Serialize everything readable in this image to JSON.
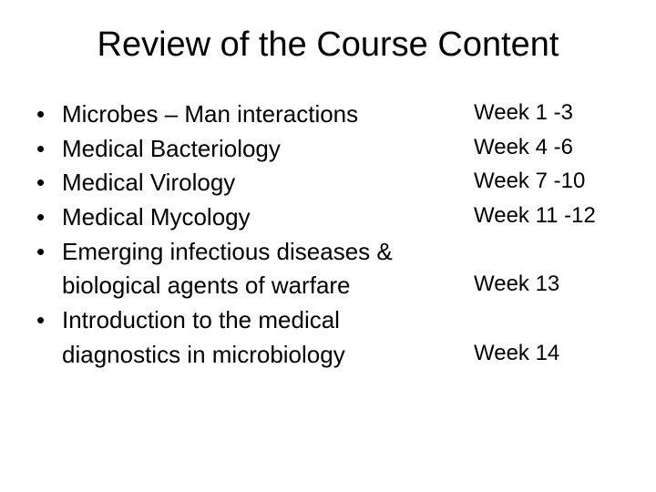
{
  "title": "Review of the Course Content",
  "rows": [
    {
      "bullet": "•",
      "topic": "Microbes – Man interactions",
      "week": "Week 1 -3"
    },
    {
      "bullet": "•",
      "topic": "Medical Bacteriology",
      "week": "Week 4 -6"
    },
    {
      "bullet": "•",
      "topic": "Medical Virology",
      "week": "Week 7 -10"
    },
    {
      "bullet": "•",
      "topic": "Medical Mycology",
      "week": "Week 11 -12"
    },
    {
      "bullet": "•",
      "topic": "Emerging infectious diseases  &",
      "week": ""
    },
    {
      "bullet": "",
      "topic": "biological agents of warfare",
      "week": "Week 13"
    },
    {
      "bullet": "•",
      "topic": "Introduction to the medical",
      "week": ""
    },
    {
      "bullet": "",
      "topic": "diagnostics in microbiology",
      "week": "Week 14"
    }
  ],
  "style": {
    "background_color": "#ffffff",
    "text_color": "#000000",
    "title_fontsize_pt": 29,
    "body_fontsize_pt": 20,
    "week_fontsize_pt": 18,
    "font_family": "Arial"
  }
}
